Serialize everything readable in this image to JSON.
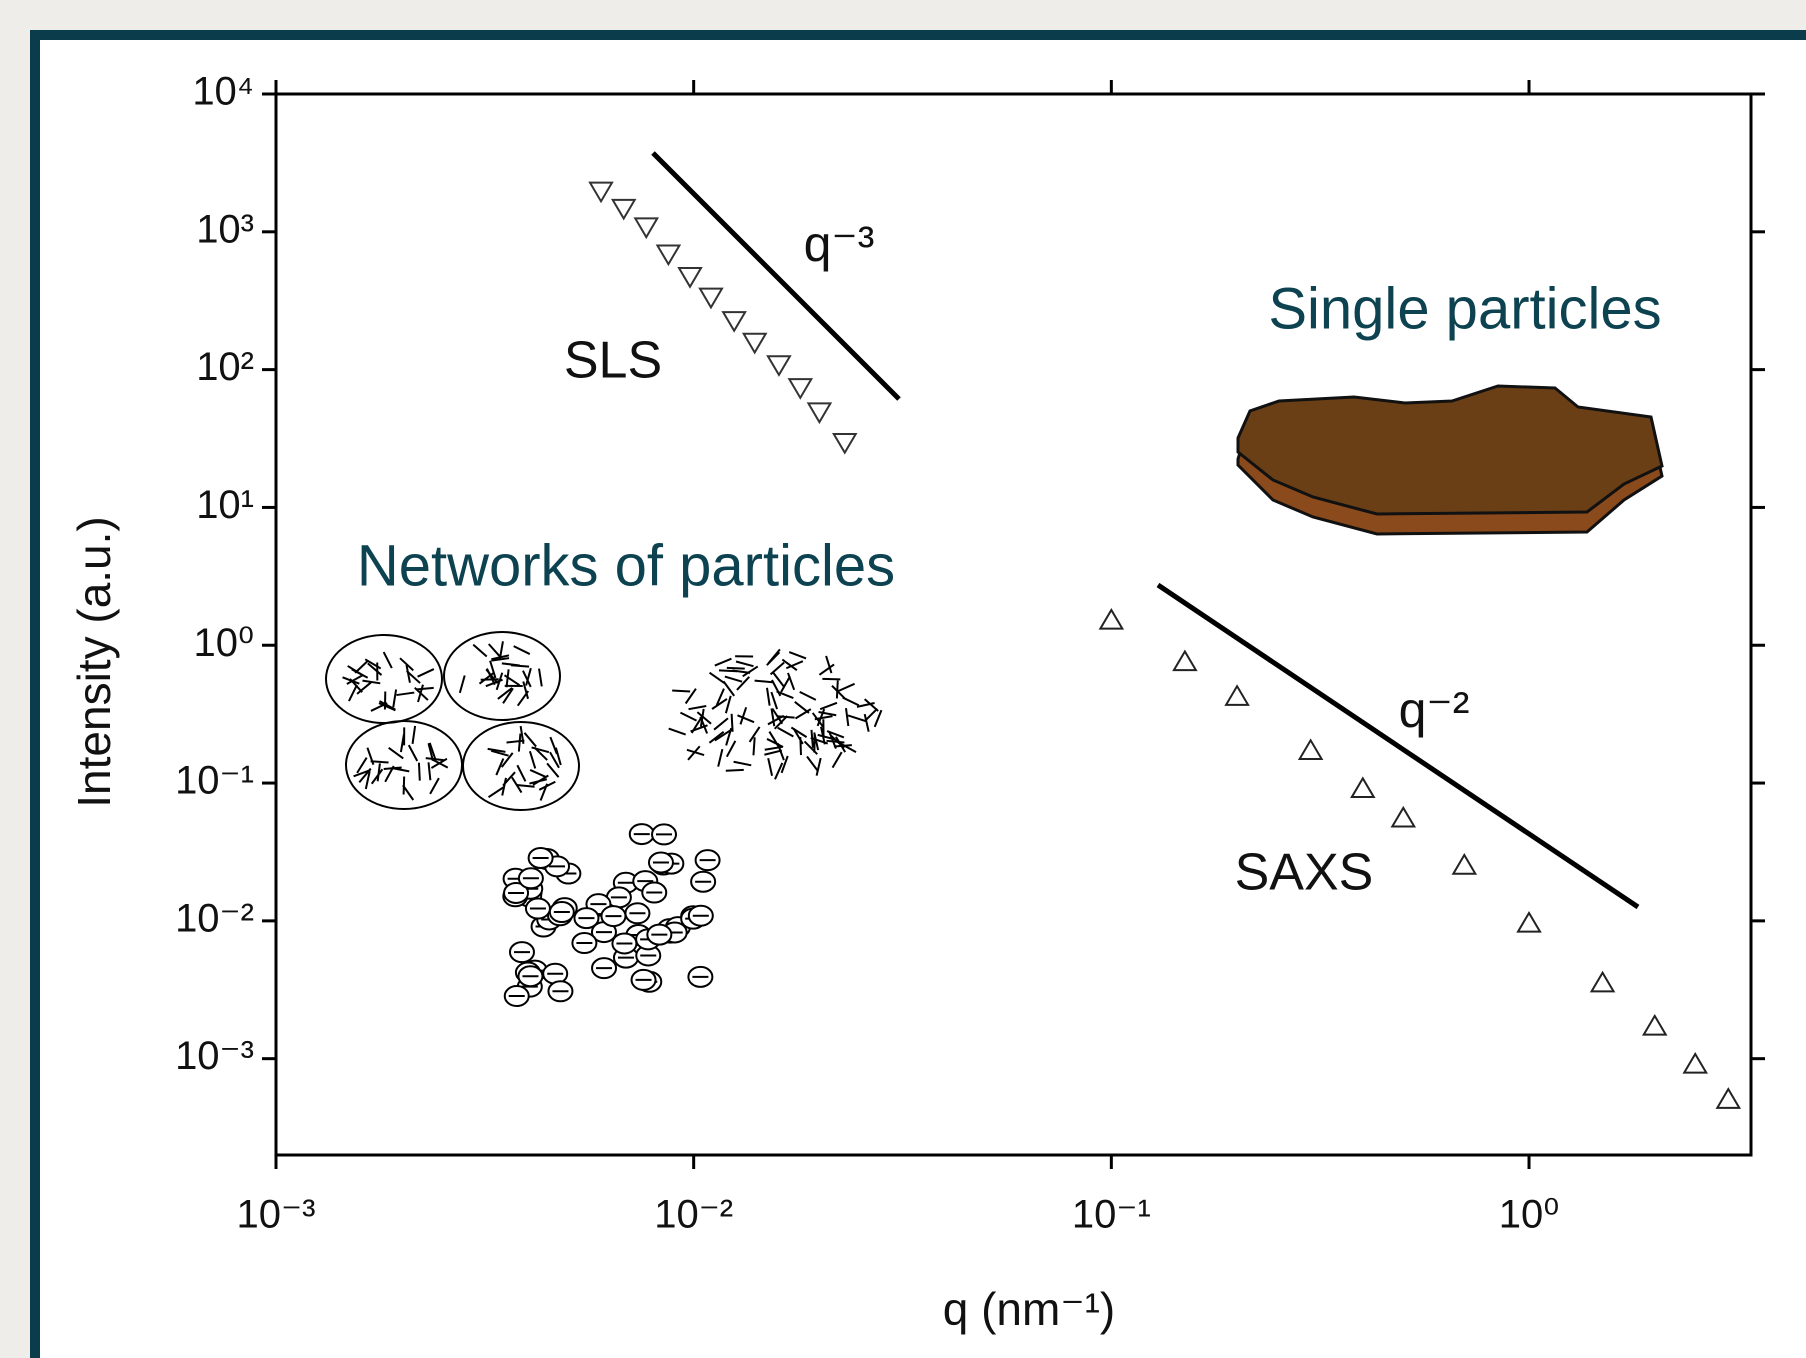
{
  "chart_data": {
    "type": "scatter",
    "log_x": true,
    "log_y": true,
    "x_label": "q (nm⁻¹)",
    "y_label": "Intensity (a.u.)",
    "annotations": [
      "Single particles",
      "Networks of particles",
      "q⁻³",
      "q⁻²"
    ],
    "xlim": [
      0.001,
      3.4
    ],
    "ylim": [
      0.0002,
      10000
    ],
    "xticks": [
      {
        "value": 0.001,
        "label": "10⁻³"
      },
      {
        "value": 0.01,
        "label": "10⁻²"
      },
      {
        "value": 0.1,
        "label": "10⁻¹"
      },
      {
        "value": 1,
        "label": "10⁰"
      }
    ],
    "yticks": [
      {
        "value": 0.001,
        "label": "10⁻³"
      },
      {
        "value": 0.01,
        "label": "10⁻²"
      },
      {
        "value": 0.1,
        "label": "10⁻¹"
      },
      {
        "value": 1,
        "label": "10⁰"
      },
      {
        "value": 10,
        "label": "10¹"
      },
      {
        "value": 100,
        "label": "10²"
      },
      {
        "value": 1000,
        "label": "10³"
      },
      {
        "value": 10000,
        "label": "10⁴"
      }
    ],
    "series": [
      {
        "name": "SLS",
        "color": "#333333",
        "x": [
          0.006,
          0.0068,
          0.0077,
          0.0087,
          0.0098,
          0.011,
          0.0125,
          0.014,
          0.016,
          0.018,
          0.02,
          0.023
        ],
        "values": [
          2000,
          1500,
          1100,
          700,
          480,
          340,
          230,
          160,
          110,
          75,
          50,
          30
        ]
      },
      {
        "name": "SAXS",
        "color": "#222222",
        "x": [
          0.1,
          0.15,
          0.2,
          0.3,
          0.4,
          0.5,
          0.7,
          1.0,
          1.5,
          2.0,
          2.5,
          3.0
        ],
        "values": [
          1.5,
          0.75,
          0.42,
          0.17,
          0.09,
          0.055,
          0.025,
          0.0095,
          0.0035,
          0.0017,
          0.0009,
          0.0005
        ]
      }
    ]
  }
}
